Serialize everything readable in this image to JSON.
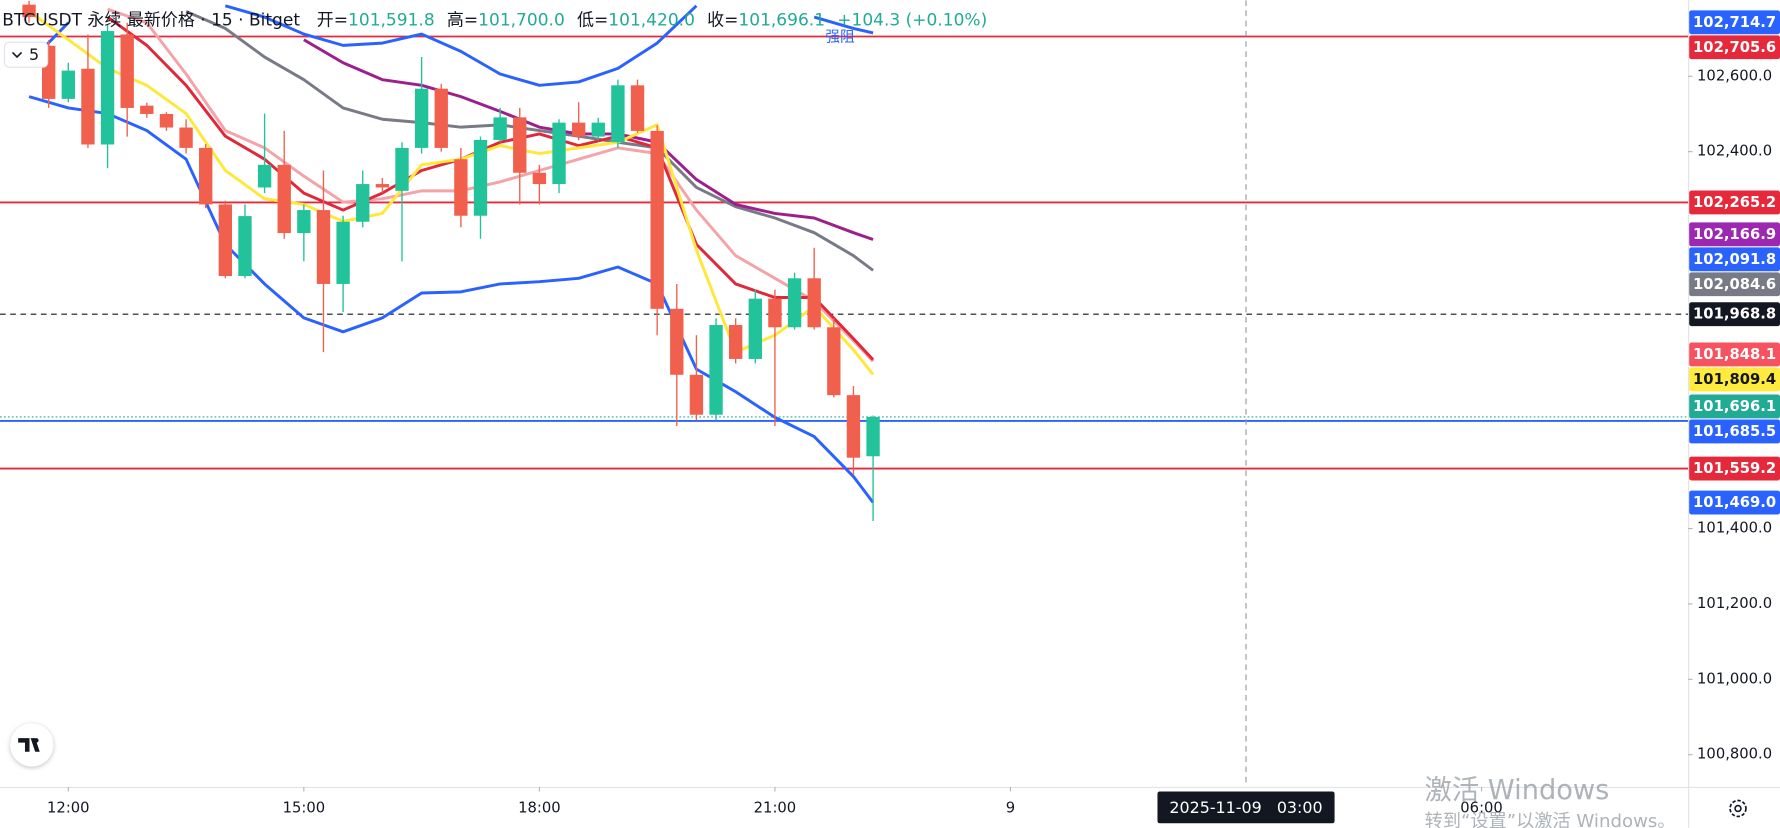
{
  "chart_data": {
    "type": "candlestick",
    "header": {
      "symbol": "BTCUSDT 永续 最新价格 · 15 · Bitget",
      "fields": [
        {
          "key": "开=",
          "text": "101,591.8"
        },
        {
          "key": "高=",
          "text": "101,700.0"
        },
        {
          "key": "低=",
          "text": "101,420.0"
        },
        {
          "key": "收=",
          "text": "101,696.1"
        }
      ],
      "change": "+104.3 (+0.10%)"
    },
    "up_color": "#22c39a",
    "down_color": "#f0604d",
    "xlim": [
      11.13,
      32.63
    ],
    "ylim": [
      100714.5,
      102801.8
    ],
    "grid": false,
    "xticks": [
      {
        "value": 12,
        "label": "12:00"
      },
      {
        "value": 15,
        "label": "15:00"
      },
      {
        "value": 18,
        "label": "18:00"
      },
      {
        "value": 21,
        "label": "21:00"
      },
      {
        "value": 24,
        "label": "9"
      },
      {
        "value": 30,
        "label": "06:00"
      }
    ],
    "yticks": [
      {
        "value": 102600,
        "label": "102,600.0"
      },
      {
        "value": 102400,
        "label": "102,400.0"
      },
      {
        "value": 101400,
        "label": "101,400.0"
      },
      {
        "value": 101200,
        "label": "101,200.0"
      },
      {
        "value": 101000,
        "label": "101,000.0"
      },
      {
        "value": 100800,
        "label": "100,800.0"
      }
    ],
    "candles": {
      "x": [
        11.5,
        11.75,
        12,
        12.25,
        12.5,
        12.75,
        13,
        13.25,
        13.5,
        13.75,
        14,
        14.25,
        14.5,
        14.75,
        15,
        15.25,
        15.5,
        15.75,
        16,
        16.25,
        16.5,
        16.75,
        17,
        17.25,
        17.5,
        17.75,
        18,
        18.25,
        18.5,
        18.75,
        19,
        19.25,
        19.5,
        19.75,
        20,
        20.25,
        20.5,
        20.75,
        21,
        21.25,
        21.5,
        21.75,
        22,
        22.25
      ],
      "open": [
        102790,
        102681,
        102540,
        102620,
        102419,
        102711,
        102522,
        102500,
        102464,
        102410,
        102260,
        102070,
        102305,
        102365,
        102184,
        102245,
        102049,
        102214,
        102314,
        102296,
        102410,
        102567,
        102380,
        102230,
        102431,
        102491,
        102344,
        102314,
        102477,
        102440,
        102425,
        102576,
        102455,
        101983,
        101808,
        101702,
        101940,
        101850,
        102010,
        101934,
        102064,
        101934,
        101754,
        101591.8
      ],
      "high": [
        102800,
        102696,
        102636,
        102711,
        102736,
        102742,
        102530,
        102505,
        102486,
        102420,
        102270,
        102260,
        102501,
        102455,
        102260,
        102350,
        102230,
        102350,
        102330,
        102425,
        102651,
        102580,
        102410,
        102440,
        102516,
        102516,
        102365,
        102486,
        102531,
        102490,
        102591,
        102591,
        102470,
        102049,
        101913,
        101958,
        101958,
        102034,
        102034,
        102079,
        102145,
        101958,
        101778,
        101700
      ],
      "low": [
        102742,
        102516,
        102531,
        102410,
        102356,
        102440,
        102490,
        102455,
        102395,
        102250,
        102064,
        102064,
        102290,
        102169,
        102109,
        101868,
        101974,
        102199,
        102290,
        102109,
        102395,
        102400,
        102199,
        102169,
        102425,
        102260,
        102260,
        102290,
        102430,
        102430,
        102410,
        102450,
        101913,
        101672,
        101687,
        101687,
        101838,
        101838,
        101672,
        101928,
        101928,
        101748,
        101543,
        101420
      ],
      "close": [
        102757,
        102540,
        102615,
        102419,
        102720,
        102516,
        102500,
        102464,
        102410,
        102260,
        102070,
        102229,
        102365,
        102184,
        102245,
        102049,
        102214,
        102314,
        102305,
        102410,
        102567,
        102410,
        102230,
        102431,
        102491,
        102344,
        102314,
        102477,
        102440,
        102477,
        102576,
        102455,
        101983,
        101808,
        101702,
        101940,
        101850,
        102010,
        101934,
        102064,
        101934,
        101754,
        101588,
        101696.1
      ]
    },
    "line_x": [
      11.5,
      12,
      12.5,
      13,
      13.5,
      14,
      14.5,
      15,
      15.5,
      16,
      16.5,
      17,
      17.5,
      18,
      18.5,
      19,
      19.5,
      20,
      20.5,
      21,
      21.5,
      22,
      22.25
    ],
    "lines": [
      {
        "color": "#2962ff",
        "values": [
          102636,
          102742,
          null,
          null,
          null,
          102787,
          102757,
          102712,
          102682,
          102688,
          102712,
          102666,
          102606,
          102576,
          102585,
          102621,
          102688,
          102787,
          null,
          null,
          102757,
          102727,
          102715
        ]
      },
      {
        "color": "#2962ff",
        "values": [
          102546,
          102516,
          102501,
          102456,
          102380,
          102154,
          102049,
          101959,
          101922,
          101959,
          102025,
          102028,
          102049,
          102055,
          102064,
          102094,
          102049,
          101823,
          101763,
          101695,
          101644,
          101538,
          101469
        ]
      },
      {
        "color": "#787b86",
        "values": [
          null,
          null,
          null,
          null,
          102772,
          102727,
          102651,
          102591,
          102516,
          102486,
          102477,
          102465,
          102471,
          102456,
          102441,
          102425,
          102410,
          102305,
          102254,
          102224,
          102185,
          102124,
          102085
        ]
      },
      {
        "color": "#9c1f8c",
        "values": [
          null,
          null,
          null,
          null,
          null,
          null,
          null,
          102697,
          102636,
          102591,
          102576,
          102546,
          102507,
          102465,
          102447,
          102447,
          102425,
          102326,
          102260,
          102236,
          102224,
          102185,
          102167
        ]
      },
      {
        "color": "#f4a3a8",
        "values": [
          null,
          null,
          102778,
          102742,
          102606,
          102456,
          102410,
          102335,
          102266,
          102275,
          102296,
          102296,
          102320,
          102350,
          102380,
          102410,
          102395,
          102245,
          102124,
          102064,
          102004,
          101898,
          101844
        ]
      },
      {
        "color": "#e0283a",
        "values": [
          null,
          null,
          102757,
          102682,
          102576,
          102441,
          102380,
          102290,
          102245,
          102290,
          102350,
          102380,
          102425,
          102447,
          102416,
          102441,
          102410,
          102154,
          102049,
          102013,
          102013,
          101904,
          101848
        ]
      },
      {
        "color": "#ffe83b",
        "values": [
          102772,
          102697,
          102621,
          102576,
          102501,
          102350,
          102275,
          102260,
          102215,
          102236,
          102365,
          102380,
          102416,
          102395,
          102410,
          102425,
          102471,
          102139,
          101868,
          101913,
          101989,
          101874,
          101809
        ]
      }
    ],
    "price_badges": [
      {
        "value": 102714.7,
        "label": "102,714.7",
        "color": "#2962ff"
      },
      {
        "value": 102705.6,
        "label": "102,705.6",
        "color": "#e5293b",
        "line": "solid",
        "note": "强阻"
      },
      {
        "value": 102265.2,
        "label": "102,265.2",
        "color": "#e5293b",
        "line": "solid"
      },
      {
        "value": 102166.9,
        "label": "102,166.9",
        "color": "#9c27b0"
      },
      {
        "value": 102091.8,
        "label": "102,091.8",
        "color": "#2962ff"
      },
      {
        "value": 102084.6,
        "label": "102,084.6",
        "color": "#787b86"
      },
      {
        "value": 101968.8,
        "label": "101,968.8",
        "color": "#131722",
        "line": "dashed"
      },
      {
        "value": 101848.1,
        "label": "101,848.1",
        "color": "#f7525f"
      },
      {
        "value": 101809.4,
        "label": "101,809.4",
        "color": "#ffeb3b"
      },
      {
        "value": 101696.1,
        "label": "101,696.1",
        "color": "#22ab94",
        "line": "dotted"
      },
      {
        "value": 101685.5,
        "label": "101,685.5",
        "color": "#2962ff",
        "line": "solid"
      },
      {
        "value": 101559.2,
        "label": "101,559.2",
        "color": "#e5293b",
        "line": "solid"
      },
      {
        "value": 101469.0,
        "label": "101,469.0",
        "color": "#2962ff"
      }
    ],
    "crosshair_time": {
      "value": 27,
      "label": "2025-11-09   03:00"
    }
  },
  "ui": {
    "collapse_count": "5",
    "watermark_title": "激活 Windows",
    "watermark_sub": "转到“设置”以激活 Windows。"
  }
}
